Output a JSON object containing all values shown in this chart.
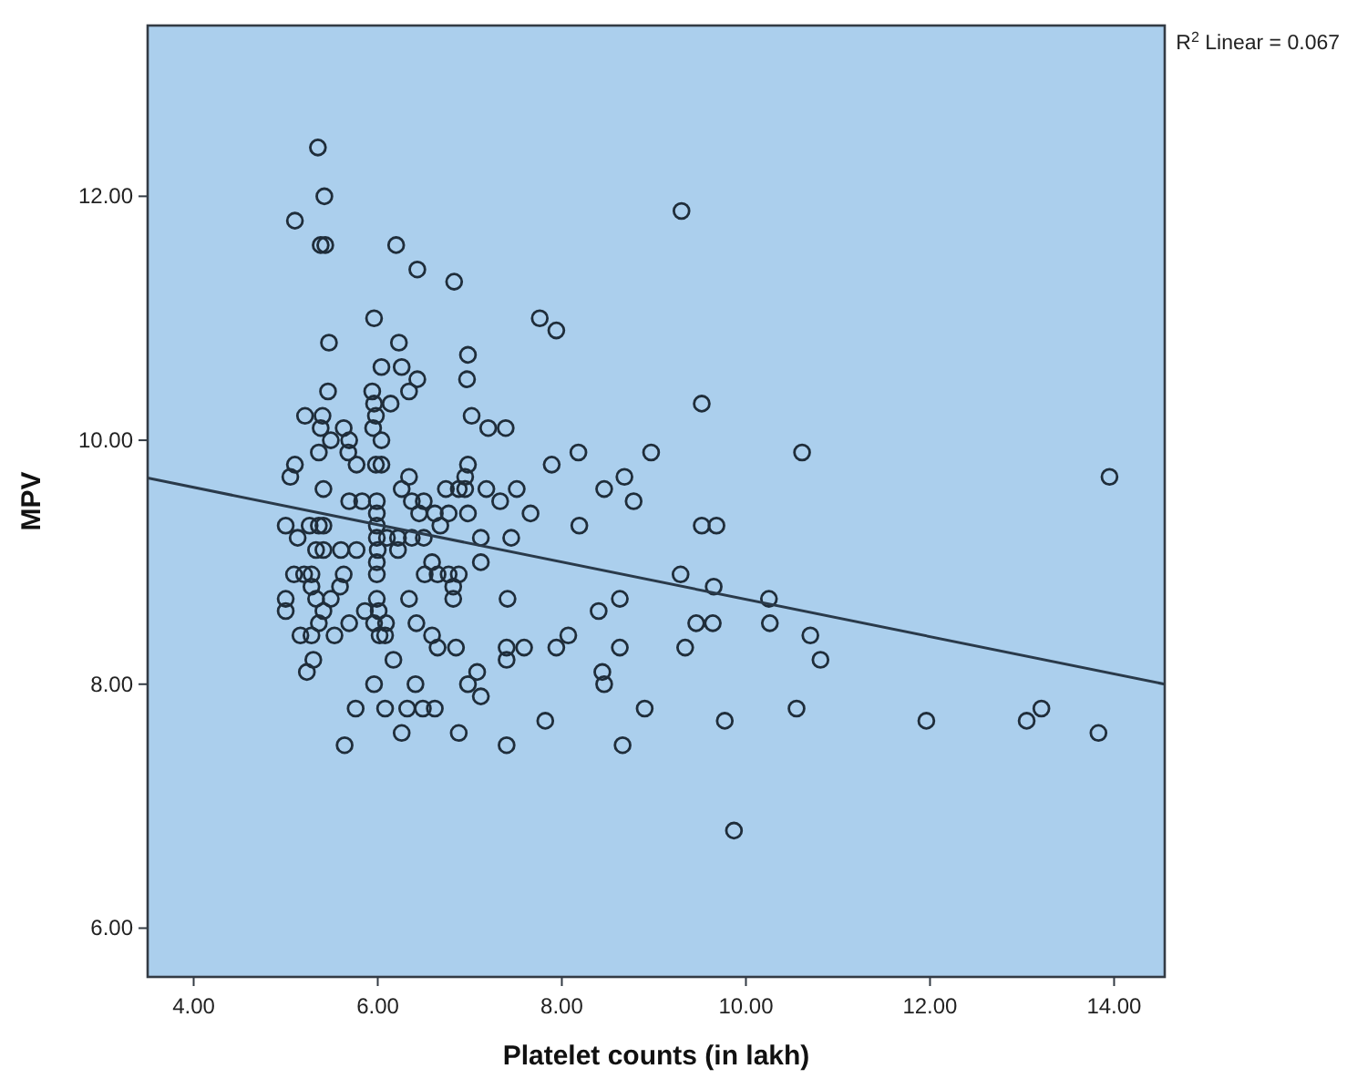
{
  "chart_data": {
    "type": "scatter",
    "xlabel": "Platelet counts (in lakh)",
    "ylabel": "MPV",
    "annotations": [
      "R$^{2}$ Linear = 0.067"
    ],
    "xlim": [
      3.5,
      14.55
    ],
    "ylim": [
      5.6,
      13.4
    ],
    "xticks": [
      {
        "value": 4,
        "label": "4.00"
      },
      {
        "value": 6,
        "label": "6.00"
      },
      {
        "value": 8,
        "label": "8.00"
      },
      {
        "value": 10,
        "label": "10.00"
      },
      {
        "value": 12,
        "label": "12.00"
      },
      {
        "value": 14,
        "label": "14.00"
      }
    ],
    "yticks": [
      {
        "value": 6,
        "label": "6.00"
      },
      {
        "value": 8,
        "label": "8.00"
      },
      {
        "value": 10,
        "label": "10.00"
      },
      {
        "value": 12,
        "label": "12.00"
      }
    ],
    "grid": false,
    "series": [
      {
        "marker": "circle",
        "color": "#1f2d3a",
        "x": [
          5.35,
          5.42,
          5.1,
          5.38,
          5.43,
          6.2,
          6.43,
          6.83,
          5.96,
          7.76,
          7.94,
          5.47,
          6.23,
          6.04,
          6.26,
          6.98,
          6.97,
          6.43,
          5.46,
          5.94,
          6.34,
          5.96,
          6.14,
          5.21,
          5.4,
          7.02,
          7.2,
          7.39,
          5.98,
          5.38,
          5.63,
          5.95,
          6.04,
          5.69,
          5.49,
          5.1,
          5.05,
          5.36,
          5.68,
          5.77,
          5.98,
          6.04,
          6.34,
          6.98,
          6.95,
          7.89,
          5.41,
          6.26,
          6.74,
          6.88,
          6.95,
          7.18,
          7.51,
          5.69,
          5.83,
          5.99,
          6.37,
          6.5,
          7.33,
          5.99,
          6.45,
          6.62,
          6.77,
          6.98,
          7.66,
          5.0,
          5.26,
          5.36,
          5.41,
          5.99,
          6.68,
          5.13,
          5.99,
          6.1,
          6.22,
          6.37,
          6.5,
          7.12,
          7.45,
          5.33,
          5.41,
          5.6,
          5.77,
          6.0,
          6.22,
          5.99,
          6.59,
          7.12,
          5.09,
          5.2,
          5.28,
          5.63,
          5.99,
          6.51,
          6.65,
          6.77,
          6.88,
          5.28,
          5.59,
          6.82,
          5.0,
          5.0,
          5.33,
          5.49,
          5.99,
          6.34,
          6.82,
          7.41,
          5.41,
          5.86,
          6.01,
          5.36,
          5.69,
          5.96,
          6.09,
          6.42,
          5.16,
          5.28,
          5.53,
          6.02,
          6.08,
          6.59,
          6.65,
          6.85,
          7.4,
          7.59,
          7.4,
          7.94,
          5.3,
          5.23,
          6.17,
          7.08,
          5.96,
          6.41,
          6.98,
          7.12,
          5.76,
          6.08,
          6.32,
          6.49,
          6.62,
          7.82,
          6.26,
          6.88,
          5.64,
          7.4,
          9.3,
          9.52,
          8.18,
          8.97,
          10.61,
          8.46,
          8.68,
          8.78,
          8.19,
          9.52,
          9.68,
          9.29,
          9.65,
          10.25,
          8.63,
          8.4,
          8.07,
          8.63,
          9.34,
          9.46,
          9.64,
          10.26,
          10.7,
          10.81,
          8.44,
          8.46,
          8.9,
          9.77,
          10.55,
          11.96,
          13.05,
          13.21,
          8.66,
          9.87,
          13.95,
          13.83
        ],
        "values": [
          12.4,
          12.0,
          11.8,
          11.6,
          11.6,
          11.6,
          11.4,
          11.3,
          11.0,
          11.0,
          10.9,
          10.8,
          10.8,
          10.6,
          10.6,
          10.7,
          10.5,
          10.5,
          10.4,
          10.4,
          10.4,
          10.3,
          10.3,
          10.2,
          10.2,
          10.2,
          10.1,
          10.1,
          10.2,
          10.1,
          10.1,
          10.1,
          10.0,
          10.0,
          10.0,
          9.8,
          9.7,
          9.9,
          9.9,
          9.8,
          9.8,
          9.8,
          9.7,
          9.8,
          9.7,
          9.8,
          9.6,
          9.6,
          9.6,
          9.6,
          9.6,
          9.6,
          9.6,
          9.5,
          9.5,
          9.5,
          9.5,
          9.5,
          9.5,
          9.4,
          9.4,
          9.4,
          9.4,
          9.4,
          9.4,
          9.3,
          9.3,
          9.3,
          9.3,
          9.3,
          9.3,
          9.2,
          9.2,
          9.2,
          9.2,
          9.2,
          9.2,
          9.2,
          9.2,
          9.1,
          9.1,
          9.1,
          9.1,
          9.1,
          9.1,
          9.0,
          9.0,
          9.0,
          8.9,
          8.9,
          8.9,
          8.9,
          8.9,
          8.9,
          8.9,
          8.9,
          8.9,
          8.8,
          8.8,
          8.8,
          8.7,
          8.6,
          8.7,
          8.7,
          8.7,
          8.7,
          8.7,
          8.7,
          8.6,
          8.6,
          8.6,
          8.5,
          8.5,
          8.5,
          8.5,
          8.5,
          8.4,
          8.4,
          8.4,
          8.4,
          8.4,
          8.4,
          8.3,
          8.3,
          8.3,
          8.3,
          8.2,
          8.3,
          8.2,
          8.1,
          8.2,
          8.1,
          8.0,
          8.0,
          8.0,
          7.9,
          7.8,
          7.8,
          7.8,
          7.8,
          7.8,
          7.7,
          7.6,
          7.6,
          7.5,
          7.5,
          11.88,
          10.3,
          9.9,
          9.9,
          9.9,
          9.6,
          9.7,
          9.5,
          9.3,
          9.3,
          9.3,
          8.9,
          8.8,
          8.7,
          8.7,
          8.6,
          8.4,
          8.3,
          8.3,
          8.5,
          8.5,
          8.5,
          8.4,
          8.2,
          8.1,
          8.0,
          7.8,
          7.7,
          7.8,
          7.7,
          7.7,
          7.8,
          7.5,
          6.8,
          9.7,
          7.6
        ]
      },
      {
        "type": "line",
        "color": "#2a3a4a",
        "x": [
          3.5,
          14.55
        ],
        "values": [
          9.69,
          8.0
        ]
      }
    ]
  }
}
